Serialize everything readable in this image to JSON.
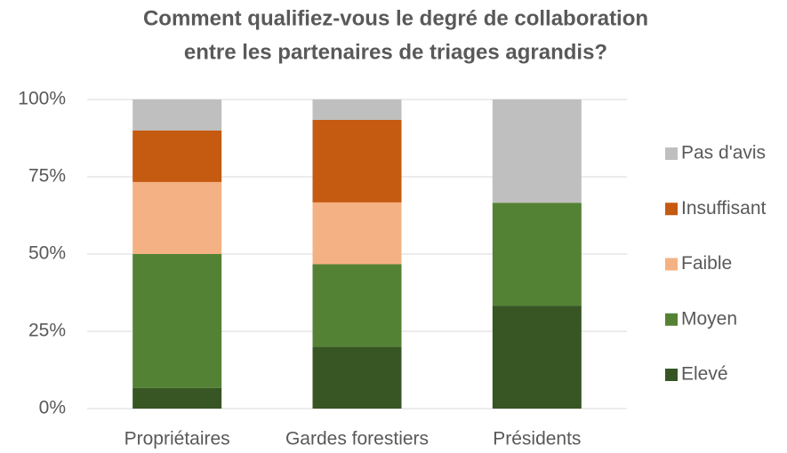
{
  "chart_data": {
    "type": "stacked_bar",
    "title": [
      "Comment qualifiez-vous le degré de collaboration",
      "entre les partenaires de triages agrandis?"
    ],
    "categories": [
      "Propriétaires",
      "Gardes forestiers",
      "Présidents"
    ],
    "series": [
      {
        "name": "Elevé",
        "color": "#375623",
        "values": [
          6.7,
          20,
          33.3
        ]
      },
      {
        "name": "Moyen",
        "color": "#548235",
        "values": [
          43.3,
          26.7,
          33.3
        ]
      },
      {
        "name": "Faible",
        "color": "#f4b183",
        "values": [
          23.3,
          20,
          0
        ]
      },
      {
        "name": "Insuffisant",
        "color": "#c55a11",
        "values": [
          16.7,
          26.7,
          0
        ]
      },
      {
        "name": "Pas d'avis",
        "color": "#bfbfbf",
        "values": [
          10,
          6.6,
          33.4
        ]
      }
    ],
    "ylim": [
      0,
      100
    ],
    "yticks": [
      {
        "value": 0,
        "label": "0%"
      },
      {
        "value": 25,
        "label": "25%"
      },
      {
        "value": 50,
        "label": "50%"
      },
      {
        "value": 75,
        "label": "75%"
      },
      {
        "value": 100,
        "label": "100%"
      }
    ],
    "grid": true,
    "legend": "right"
  }
}
